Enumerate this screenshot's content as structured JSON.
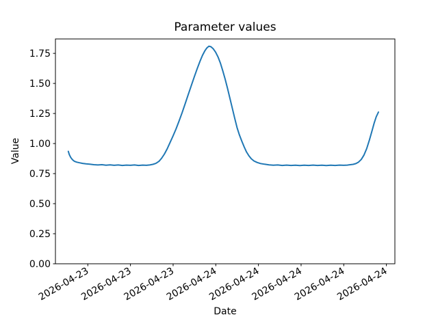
{
  "chart_data": {
    "type": "line",
    "title": "Parameter values",
    "xlabel": "Date",
    "ylabel": "Value",
    "grid": false,
    "legend": false,
    "ylim": [
      0,
      1.87
    ],
    "y_tick_values": [
      0.0,
      0.25,
      0.5,
      0.75,
      1.0,
      1.25,
      1.5,
      1.75
    ],
    "y_tick_labels": [
      "0.00",
      "0.25",
      "0.50",
      "0.75",
      "1.00",
      "1.25",
      "1.50",
      "1.75"
    ],
    "x_tick_positions": [
      0.0954,
      0.221,
      0.3467,
      0.4724,
      0.598,
      0.7237,
      0.8494,
      0.975
    ],
    "x_tick_labels": [
      "2026-04-23",
      "2026-04-23",
      "2026-04-23",
      "2026-04-24",
      "2026-04-24",
      "2026-04-24",
      "2026-04-24",
      "2026-04-24"
    ],
    "x_tick_rotation_deg": 30,
    "series": [
      {
        "name": "parameter-values",
        "color": "#1f77b4",
        "points": [
          [
            0.038,
            0.935
          ],
          [
            0.041,
            0.908
          ],
          [
            0.045,
            0.885
          ],
          [
            0.05,
            0.866
          ],
          [
            0.056,
            0.852
          ],
          [
            0.063,
            0.845
          ],
          [
            0.071,
            0.84
          ],
          [
            0.08,
            0.835
          ],
          [
            0.09,
            0.831
          ],
          [
            0.101,
            0.828
          ],
          [
            0.113,
            0.824
          ],
          [
            0.125,
            0.822
          ],
          [
            0.137,
            0.824
          ],
          [
            0.149,
            0.82
          ],
          [
            0.161,
            0.823
          ],
          [
            0.173,
            0.819
          ],
          [
            0.185,
            0.822
          ],
          [
            0.197,
            0.818
          ],
          [
            0.209,
            0.821
          ],
          [
            0.221,
            0.819
          ],
          [
            0.233,
            0.822
          ],
          [
            0.245,
            0.818
          ],
          [
            0.257,
            0.821
          ],
          [
            0.268,
            0.819
          ],
          [
            0.278,
            0.822
          ],
          [
            0.287,
            0.827
          ],
          [
            0.296,
            0.835
          ],
          [
            0.305,
            0.852
          ],
          [
            0.313,
            0.878
          ],
          [
            0.321,
            0.912
          ],
          [
            0.329,
            0.955
          ],
          [
            0.337,
            1.005
          ],
          [
            0.346,
            1.06
          ],
          [
            0.355,
            1.12
          ],
          [
            0.364,
            1.185
          ],
          [
            0.373,
            1.255
          ],
          [
            0.382,
            1.33
          ],
          [
            0.391,
            1.405
          ],
          [
            0.4,
            1.48
          ],
          [
            0.409,
            1.555
          ],
          [
            0.418,
            1.625
          ],
          [
            0.426,
            1.685
          ],
          [
            0.433,
            1.733
          ],
          [
            0.44,
            1.77
          ],
          [
            0.446,
            1.795
          ],
          [
            0.452,
            1.81
          ],
          [
            0.458,
            1.805
          ],
          [
            0.465,
            1.788
          ],
          [
            0.472,
            1.76
          ],
          [
            0.479,
            1.72
          ],
          [
            0.486,
            1.668
          ],
          [
            0.493,
            1.605
          ],
          [
            0.5,
            1.535
          ],
          [
            0.507,
            1.458
          ],
          [
            0.514,
            1.378
          ],
          [
            0.521,
            1.295
          ],
          [
            0.528,
            1.212
          ],
          [
            0.535,
            1.132
          ],
          [
            0.542,
            1.072
          ],
          [
            0.549,
            1.02
          ],
          [
            0.556,
            0.972
          ],
          [
            0.563,
            0.93
          ],
          [
            0.57,
            0.898
          ],
          [
            0.577,
            0.873
          ],
          [
            0.585,
            0.855
          ],
          [
            0.594,
            0.843
          ],
          [
            0.604,
            0.834
          ],
          [
            0.616,
            0.828
          ],
          [
            0.629,
            0.823
          ],
          [
            0.642,
            0.82
          ],
          [
            0.655,
            0.822
          ],
          [
            0.668,
            0.818
          ],
          [
            0.681,
            0.821
          ],
          [
            0.694,
            0.818
          ],
          [
            0.707,
            0.82
          ],
          [
            0.72,
            0.817
          ],
          [
            0.733,
            0.82
          ],
          [
            0.746,
            0.818
          ],
          [
            0.759,
            0.821
          ],
          [
            0.772,
            0.818
          ],
          [
            0.785,
            0.82
          ],
          [
            0.798,
            0.817
          ],
          [
            0.811,
            0.82
          ],
          [
            0.824,
            0.818
          ],
          [
            0.837,
            0.821
          ],
          [
            0.849,
            0.819
          ],
          [
            0.86,
            0.821
          ],
          [
            0.869,
            0.824
          ],
          [
            0.877,
            0.827
          ],
          [
            0.885,
            0.833
          ],
          [
            0.893,
            0.846
          ],
          [
            0.901,
            0.868
          ],
          [
            0.909,
            0.905
          ],
          [
            0.917,
            0.958
          ],
          [
            0.925,
            1.03
          ],
          [
            0.932,
            1.1
          ],
          [
            0.939,
            1.17
          ],
          [
            0.945,
            1.222
          ],
          [
            0.9516,
            1.262
          ]
        ]
      }
    ],
    "colors": {
      "line": "#1f77b4",
      "axes": "#000000",
      "background": "#ffffff"
    }
  }
}
